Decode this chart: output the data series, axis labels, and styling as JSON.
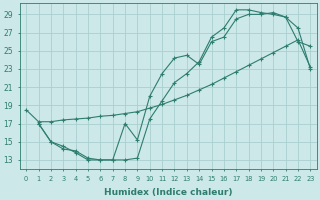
{
  "xlabel": "Humidex (Indice chaleur)",
  "background_color": "#cce8e8",
  "grid_color": "#aacfcf",
  "line_color": "#2e7d6e",
  "xlim": [
    -0.5,
    23.5
  ],
  "ylim": [
    12.0,
    30.2
  ],
  "xticks": [
    0,
    1,
    2,
    3,
    4,
    5,
    6,
    7,
    8,
    9,
    10,
    11,
    12,
    13,
    14,
    15,
    16,
    17,
    18,
    19,
    20,
    21,
    22,
    23
  ],
  "yticks": [
    13,
    15,
    17,
    19,
    21,
    23,
    25,
    27,
    29
  ],
  "line1_x": [
    0,
    1,
    2,
    3,
    4,
    5,
    6,
    7,
    8,
    9,
    10,
    11,
    12,
    13,
    14,
    15,
    16,
    17,
    18,
    19,
    20,
    21,
    22,
    23
  ],
  "line1_y": [
    18.5,
    17.2,
    17.2,
    17.4,
    17.5,
    17.6,
    17.8,
    17.9,
    18.1,
    18.3,
    18.7,
    19.1,
    19.6,
    20.1,
    20.7,
    21.3,
    22.0,
    22.7,
    23.4,
    24.1,
    24.8,
    25.5,
    26.2,
    23.2
  ],
  "line2_x": [
    1,
    2,
    3,
    4,
    5,
    6,
    7,
    8,
    9,
    10,
    11,
    12,
    13,
    14,
    15,
    16,
    17,
    18,
    19,
    20,
    21,
    22,
    23
  ],
  "line2_y": [
    17.0,
    15.0,
    14.5,
    13.8,
    13.0,
    13.0,
    13.0,
    13.0,
    13.2,
    17.5,
    19.5,
    21.5,
    22.5,
    23.8,
    26.5,
    27.5,
    29.5,
    29.5,
    29.2,
    29.0,
    28.7,
    26.0,
    25.5
  ],
  "line3_x": [
    1,
    2,
    3,
    4,
    5,
    6,
    7,
    8,
    9,
    10,
    11,
    12,
    13,
    14,
    15,
    16,
    17,
    18,
    19,
    20,
    21,
    22,
    23
  ],
  "line3_y": [
    17.0,
    15.0,
    14.2,
    14.0,
    13.2,
    13.0,
    13.0,
    17.0,
    15.2,
    20.0,
    22.5,
    24.2,
    24.5,
    23.5,
    26.0,
    26.5,
    28.5,
    29.0,
    29.0,
    29.2,
    28.7,
    27.5,
    23.0
  ]
}
